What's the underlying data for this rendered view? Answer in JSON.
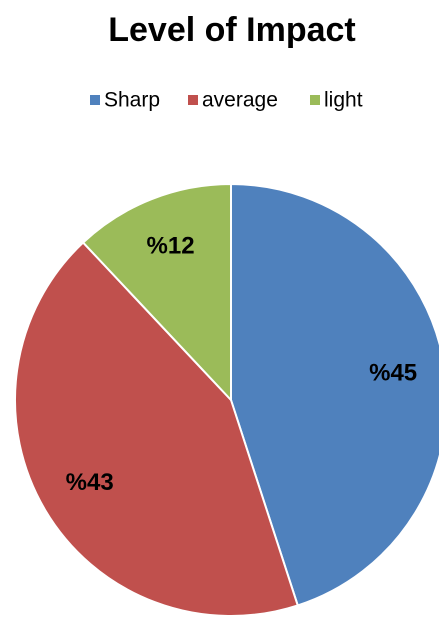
{
  "chart_data": {
    "type": "pie",
    "title": "Level of Impact",
    "categories": [
      "Sharp",
      "average",
      "light"
    ],
    "values": [
      45,
      43,
      12
    ],
    "value_labels": [
      "%45",
      "%43",
      "%12"
    ],
    "colors": [
      "#4f81bd",
      "#c0504d",
      "#9bbb59"
    ],
    "legend": "top"
  }
}
